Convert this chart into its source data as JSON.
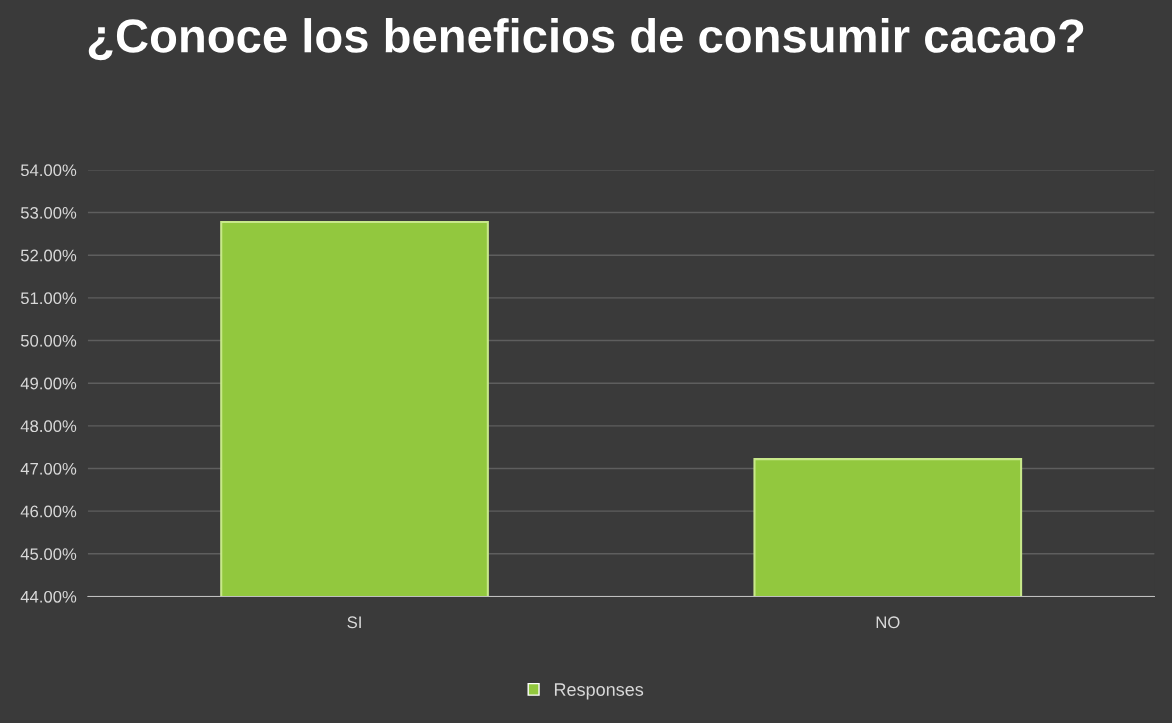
{
  "chart_data": {
    "type": "bar",
    "title": "¿Conoce los beneficios de consumir cacao?",
    "categories": [
      "SI",
      "NO"
    ],
    "series": [
      {
        "name": "Responses",
        "color": "#92c83e",
        "values": [
          52.78,
          47.22
        ]
      }
    ],
    "ylim": [
      44,
      54
    ],
    "yticks": [
      {
        "value": 44,
        "label": "44.00%"
      },
      {
        "value": 45,
        "label": "45.00%"
      },
      {
        "value": 46,
        "label": "46.00%"
      },
      {
        "value": 47,
        "label": "47.00%"
      },
      {
        "value": 48,
        "label": "48.00%"
      },
      {
        "value": 49,
        "label": "49.00%"
      },
      {
        "value": 50,
        "label": "50.00%"
      },
      {
        "value": 51,
        "label": "51.00%"
      },
      {
        "value": 52,
        "label": "52.00%"
      },
      {
        "value": 53,
        "label": "53.00%"
      },
      {
        "value": 54,
        "label": "54.00%"
      }
    ],
    "grid": "y",
    "legend": "bottom"
  }
}
